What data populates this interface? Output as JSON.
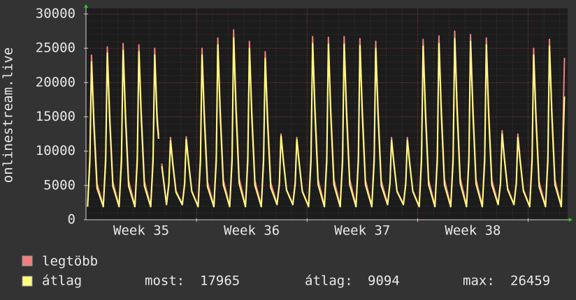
{
  "chart_data": {
    "type": "line",
    "y_label": "onlinestream.live",
    "xlim": [
      0,
      30.5
    ],
    "xticks": [
      {
        "value": 3.5,
        "label": "Week 35"
      },
      {
        "value": 10.5,
        "label": "Week 36"
      },
      {
        "value": 17.5,
        "label": "Week 37"
      },
      {
        "value": 24.5,
        "label": "Week 38"
      }
    ],
    "xgrid": [
      7,
      14,
      21,
      28
    ],
    "ylim": [
      0,
      30000
    ],
    "yticks": [
      0,
      5000,
      10000,
      15000,
      20000,
      25000,
      30000
    ],
    "grid": true,
    "x": [
      0.1,
      0.25,
      0.35,
      0.5,
      0.7,
      1.1,
      1.25,
      1.35,
      1.5,
      1.7,
      2.1,
      2.25,
      2.35,
      2.5,
      2.7,
      3.1,
      3.25,
      3.35,
      3.5,
      3.7,
      4.1,
      4.25,
      4.35,
      4.5,
      4.6,
      4.7,
      4.8,
      5.1,
      5.25,
      5.35,
      5.5,
      5.7,
      6.1,
      6.25,
      6.35,
      6.5,
      6.7,
      7.1,
      7.25,
      7.35,
      7.5,
      7.7,
      8.1,
      8.25,
      8.35,
      8.5,
      8.7,
      9.1,
      9.25,
      9.35,
      9.5,
      9.7,
      10.1,
      10.25,
      10.35,
      10.5,
      10.7,
      11.1,
      11.25,
      11.35,
      11.5,
      11.7,
      12.1,
      12.25,
      12.35,
      12.5,
      12.7,
      13.1,
      13.25,
      13.35,
      13.5,
      13.7,
      14.1,
      14.25,
      14.35,
      14.5,
      14.7,
      15.1,
      15.25,
      15.35,
      15.5,
      15.7,
      16.1,
      16.25,
      16.35,
      16.5,
      16.7,
      17.1,
      17.25,
      17.35,
      17.5,
      17.7,
      18.1,
      18.25,
      18.35,
      18.5,
      18.7,
      19.1,
      19.25,
      19.35,
      19.5,
      19.7,
      20.1,
      20.25,
      20.35,
      20.5,
      20.7,
      21.1,
      21.25,
      21.35,
      21.5,
      21.7,
      22.1,
      22.25,
      22.35,
      22.5,
      22.7,
      23.1,
      23.25,
      23.35,
      23.5,
      23.7,
      24.1,
      24.25,
      24.35,
      24.5,
      24.7,
      25.1,
      25.25,
      25.35,
      25.5,
      25.7,
      26.1,
      26.25,
      26.35,
      26.5,
      26.7,
      27.1,
      27.25,
      27.35,
      27.5,
      27.7,
      28.1,
      28.25,
      28.35,
      28.5,
      28.7,
      29.1,
      29.25,
      29.35,
      29.5,
      29.7,
      30.1,
      30.3
    ],
    "series": [
      {
        "name": "legtöbb",
        "color": "#f28080",
        "values": [
          2000,
          9500,
          24000,
          14900,
          5300,
          2000,
          9500,
          25200,
          15600,
          5500,
          2000,
          9500,
          25700,
          15900,
          5700,
          2000,
          9500,
          25500,
          15800,
          5600,
          2000,
          9500,
          25000,
          15500,
          12300,
          null,
          8200,
          2300,
          5500,
          12000,
          8400,
          4200,
          2300,
          5500,
          12100,
          8500,
          4200,
          2000,
          9500,
          25000,
          15500,
          5500,
          2000,
          9500,
          26500,
          16400,
          5800,
          2000,
          9500,
          27700,
          17200,
          6100,
          2000,
          9500,
          26000,
          16100,
          5700,
          2000,
          9500,
          24500,
          15200,
          5400,
          2300,
          5500,
          12500,
          8800,
          4400,
          2300,
          5500,
          12000,
          8400,
          4200,
          2000,
          9500,
          26700,
          16600,
          5900,
          2000,
          9500,
          26600,
          16500,
          5900,
          2000,
          9500,
          26700,
          16600,
          5900,
          2000,
          9500,
          26400,
          16400,
          5800,
          2000,
          9500,
          26000,
          16100,
          5700,
          2300,
          5500,
          12000,
          8400,
          4200,
          2300,
          5500,
          12000,
          8400,
          4200,
          2000,
          9500,
          26300,
          16300,
          5800,
          2000,
          9500,
          26800,
          16600,
          5900,
          2000,
          9500,
          27500,
          17100,
          6100,
          2000,
          9500,
          27000,
          16700,
          5900,
          2000,
          9500,
          26500,
          16400,
          5800,
          2300,
          5500,
          13000,
          9100,
          4600,
          2300,
          5500,
          12500,
          8800,
          4400,
          2000,
          9500,
          25000,
          15500,
          5500,
          2000,
          9500,
          26300,
          16300,
          5800,
          2000,
          23600
        ]
      },
      {
        "name": "átlag",
        "color": "#ffff80",
        "values": [
          1900,
          8500,
          23000,
          13800,
          4600,
          1900,
          8500,
          24300,
          14600,
          4900,
          1900,
          8500,
          24700,
          14800,
          4900,
          1900,
          8500,
          24500,
          14700,
          4900,
          1900,
          8500,
          24000,
          14400,
          11800,
          null,
          7800,
          2200,
          5200,
          11500,
          8000,
          4000,
          2200,
          5200,
          11700,
          8200,
          4100,
          1900,
          8500,
          24000,
          14400,
          4800,
          1900,
          8500,
          25500,
          15300,
          5100,
          1900,
          8500,
          26500,
          15900,
          5300,
          1900,
          8500,
          25000,
          15000,
          5000,
          1900,
          8500,
          23500,
          14100,
          4700,
          2200,
          5200,
          12200,
          8500,
          4300,
          2200,
          5200,
          11700,
          8200,
          4100,
          1900,
          8500,
          25700,
          15400,
          5100,
          1900,
          8500,
          25600,
          15400,
          5100,
          1900,
          8500,
          25600,
          15400,
          5100,
          1900,
          8500,
          25400,
          15200,
          5100,
          1900,
          8500,
          25000,
          15000,
          5000,
          2200,
          5200,
          11600,
          8100,
          4100,
          2200,
          5200,
          11600,
          8100,
          4100,
          1900,
          8500,
          25300,
          15200,
          5100,
          1900,
          8500,
          25700,
          15400,
          5100,
          1900,
          8500,
          26400,
          15800,
          5300,
          1900,
          8500,
          26000,
          15600,
          5200,
          1900,
          8500,
          25500,
          15300,
          5100,
          2200,
          5200,
          12500,
          8800,
          4400,
          2200,
          5200,
          12000,
          8400,
          4200,
          1900,
          8500,
          24000,
          14400,
          4800,
          1900,
          8500,
          25300,
          15200,
          5100,
          1900,
          17965
        ]
      }
    ],
    "stats": {
      "current_label": "most:",
      "current": 17965,
      "average_label": "átlag:",
      "average": 9094,
      "max_label": "max:",
      "max": 26459
    }
  }
}
